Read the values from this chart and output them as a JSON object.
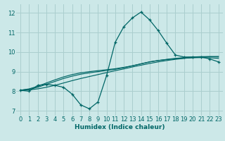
{
  "xlabel": "Humidex (Indice chaleur)",
  "bg_color": "#cce8e8",
  "line_color": "#006666",
  "grid_color": "#aacece",
  "xlim": [
    -0.5,
    23.5
  ],
  "ylim": [
    6.75,
    12.45
  ],
  "xticks": [
    0,
    1,
    2,
    3,
    4,
    5,
    6,
    7,
    8,
    9,
    10,
    11,
    12,
    13,
    14,
    15,
    16,
    17,
    18,
    19,
    20,
    21,
    22,
    23
  ],
  "yticks": [
    7,
    8,
    9,
    10,
    11,
    12
  ],
  "main_y": [
    8.05,
    8.0,
    8.3,
    8.35,
    8.3,
    8.2,
    7.85,
    7.3,
    7.1,
    7.45,
    8.8,
    10.5,
    11.3,
    11.75,
    12.05,
    11.65,
    11.1,
    10.45,
    9.85,
    9.75,
    9.75,
    9.75,
    9.65,
    9.5
  ],
  "line1_y": [
    8.05,
    8.07,
    8.12,
    8.2,
    8.3,
    8.42,
    8.54,
    8.65,
    8.75,
    8.85,
    8.95,
    9.05,
    9.14,
    9.24,
    9.33,
    9.42,
    9.5,
    9.57,
    9.63,
    9.68,
    9.72,
    9.75,
    9.77,
    9.78
  ],
  "line2_y": [
    8.05,
    8.1,
    8.2,
    8.35,
    8.5,
    8.65,
    8.77,
    8.87,
    8.94,
    9.0,
    9.06,
    9.12,
    9.2,
    9.3,
    9.4,
    9.5,
    9.57,
    9.63,
    9.68,
    9.72,
    9.75,
    9.77,
    9.77,
    9.75
  ],
  "line3_y": [
    8.05,
    8.12,
    8.25,
    8.42,
    8.58,
    8.73,
    8.85,
    8.94,
    9.0,
    9.05,
    9.1,
    9.15,
    9.22,
    9.3,
    9.4,
    9.5,
    9.57,
    9.62,
    9.66,
    9.69,
    9.71,
    9.72,
    9.71,
    9.68
  ]
}
